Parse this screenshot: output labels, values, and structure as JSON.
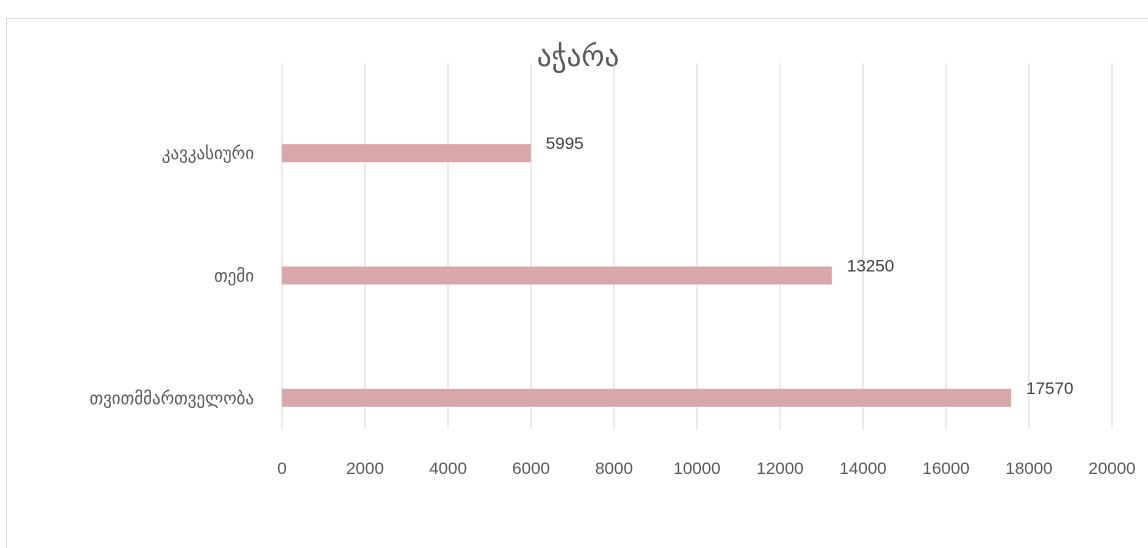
{
  "chart_data": {
    "type": "bar",
    "orientation": "horizontal",
    "title": "აჭარა",
    "categories": [
      "კავკასიური",
      "თემი",
      "თვითმმართველობა"
    ],
    "values": [
      5995,
      13250,
      17570
    ],
    "data_labels": [
      "5995",
      "13250",
      "17570"
    ],
    "xlim": [
      0,
      20000
    ],
    "x_ticks": [
      "0",
      "2000",
      "4000",
      "6000",
      "8000",
      "10000",
      "12000",
      "14000",
      "16000",
      "18000",
      "20000"
    ],
    "grid": true,
    "legend": "none",
    "bar_color": "#d9a7a7"
  }
}
